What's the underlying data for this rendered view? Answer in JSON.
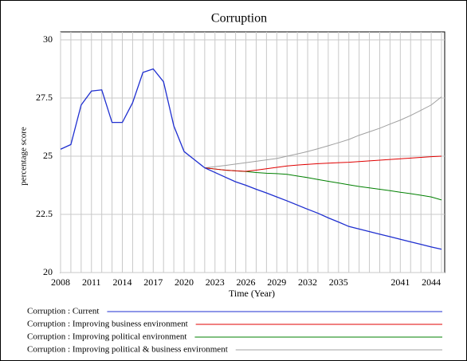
{
  "chart_data": {
    "type": "line",
    "title": "Corruption",
    "xlabel": "Time (Year)",
    "ylabel": "percentage score",
    "x": [
      2008,
      2009,
      2010,
      2011,
      2012,
      2013,
      2014,
      2015,
      2016,
      2017,
      2018,
      2019,
      2020,
      2021,
      2022,
      2023,
      2024,
      2025,
      2026,
      2027,
      2028,
      2029,
      2030,
      2031,
      2032,
      2033,
      2034,
      2035,
      2036,
      2037,
      2038,
      2039,
      2040,
      2041,
      2042,
      2043,
      2044,
      2045
    ],
    "xlim": [
      2008,
      2045
    ],
    "xticks": [
      2008,
      2011,
      2014,
      2017,
      2020,
      2023,
      2026,
      2029,
      2032,
      2035,
      2041,
      2044
    ],
    "xminor_ticks": [
      2008,
      2009,
      2010,
      2011,
      2012,
      2013,
      2014,
      2015,
      2016,
      2017,
      2018,
      2019,
      2020,
      2021,
      2022,
      2023,
      2024,
      2025,
      2026,
      2027,
      2028,
      2029,
      2030,
      2031,
      2032,
      2033,
      2034,
      2035,
      2036,
      2037,
      2038,
      2039,
      2040,
      2041,
      2042,
      2043,
      2044,
      2045
    ],
    "ylim": [
      20,
      30
    ],
    "yticks": [
      30,
      27.5,
      25,
      22.5,
      20
    ],
    "grid": true,
    "legend": "bottom",
    "series": [
      {
        "name": "Corruption : Improving political & business environment",
        "color": "#a0a0a0",
        "values": [
          null,
          null,
          null,
          null,
          null,
          null,
          null,
          null,
          null,
          null,
          null,
          null,
          null,
          null,
          24.5,
          24.55,
          24.6,
          24.66,
          24.72,
          24.78,
          24.84,
          24.9,
          25.0,
          25.1,
          25.2,
          25.32,
          25.45,
          25.58,
          25.72,
          25.9,
          26.05,
          26.2,
          26.38,
          26.55,
          26.75,
          26.97,
          27.2,
          27.55
        ]
      },
      {
        "name": "Corruption : Improving political environment",
        "color": "#008000",
        "values": [
          null,
          null,
          null,
          null,
          null,
          null,
          null,
          null,
          null,
          null,
          null,
          null,
          null,
          null,
          24.5,
          24.45,
          24.4,
          24.37,
          24.34,
          24.3,
          24.27,
          24.25,
          24.22,
          24.15,
          24.08,
          24.0,
          23.92,
          23.85,
          23.77,
          23.7,
          23.64,
          23.58,
          23.52,
          23.45,
          23.39,
          23.32,
          23.25,
          23.12
        ]
      },
      {
        "name": "Corruption : Improving business environment",
        "color": "#e00000",
        "values": [
          null,
          null,
          null,
          null,
          null,
          null,
          null,
          null,
          null,
          null,
          null,
          null,
          null,
          null,
          24.5,
          24.45,
          24.4,
          24.37,
          24.35,
          24.4,
          24.46,
          24.52,
          24.58,
          24.62,
          24.65,
          24.68,
          24.7,
          24.72,
          24.74,
          24.77,
          24.8,
          24.83,
          24.86,
          24.89,
          24.92,
          24.95,
          24.98,
          25.0
        ]
      },
      {
        "name": "Corruption : Current",
        "color": "#1f2fd0",
        "values": [
          25.3,
          25.5,
          27.2,
          27.8,
          27.85,
          26.45,
          26.45,
          27.3,
          28.6,
          28.75,
          28.2,
          26.3,
          25.2,
          24.85,
          24.5,
          24.3,
          24.1,
          23.9,
          23.75,
          23.58,
          23.42,
          23.25,
          23.08,
          22.9,
          22.72,
          22.55,
          22.35,
          22.17,
          21.98,
          21.87,
          21.76,
          21.65,
          21.54,
          21.43,
          21.32,
          21.21,
          21.1,
          21.0
        ]
      }
    ]
  }
}
